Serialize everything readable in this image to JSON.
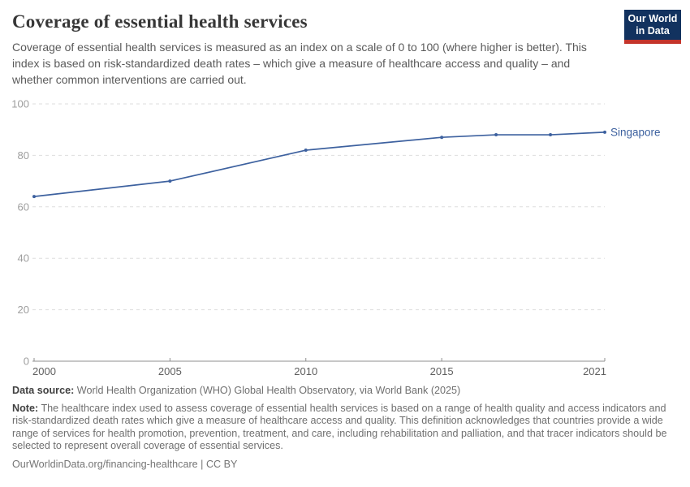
{
  "chart_data": {
    "type": "line",
    "title": "Coverage of essential health services",
    "subtitle": "Coverage of essential health services is measured as an index on a scale of 0 to 100 (where higher is better). This index is based on risk-standardized death rates – which give a measure of healthcare access and quality – and whether common interventions are carried out.",
    "x": [
      2000,
      2005,
      2010,
      2015,
      2017,
      2019,
      2021
    ],
    "series": [
      {
        "name": "Singapore",
        "color": "#3d619f",
        "values": [
          64,
          70,
          82,
          87,
          88,
          88,
          89
        ]
      }
    ],
    "xlim": [
      2000,
      2021
    ],
    "ylim": [
      0,
      100
    ],
    "yticks": [
      0,
      20,
      40,
      60,
      80,
      100
    ],
    "xticks": [
      2000,
      2005,
      2010,
      2015,
      2021
    ],
    "grid": "horizontal-dashed",
    "legend_position": "line-end-label"
  },
  "branding": {
    "logo_line1": "Our World",
    "logo_line2": "in Data"
  },
  "footer": {
    "data_source_label": "Data source:",
    "data_source": "World Health Organization (WHO) Global Health Observatory, via World Bank (2025)",
    "note_label": "Note:",
    "note": "The healthcare index used to assess coverage of essential health services is based on a range of health quality and access indicators and risk-standardized death rates which give a measure of healthcare access and quality. This definition acknowledges that countries provide a wide range of services for health promotion, prevention, treatment, and care, including rehabilitation and palliation, and that tracer indicators should be selected to represent overall coverage of essential services.",
    "citation": "OurWorldinData.org/financing-healthcare | CC BY"
  },
  "colors": {
    "line": "#3d619f",
    "grid": "#dddddd",
    "axis": "#8f8f8f",
    "ytick_label": "#9e9e9e",
    "xtick_label": "#5f5f5f"
  }
}
